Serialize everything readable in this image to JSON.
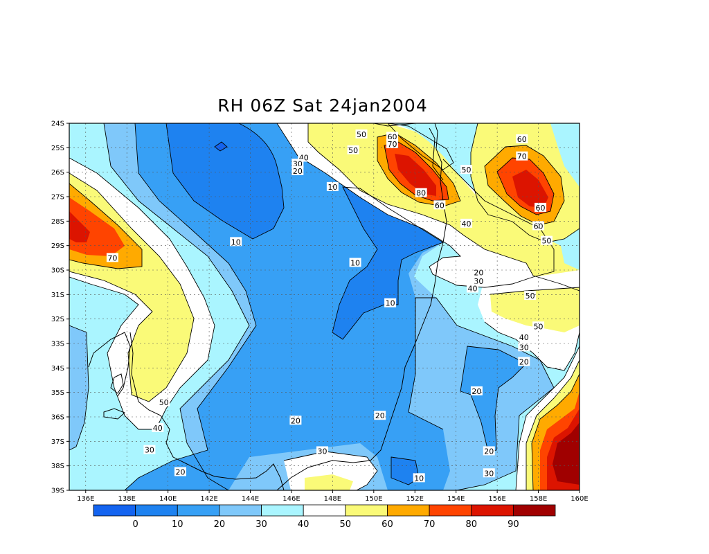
{
  "chart_data": {
    "type": "heatmap",
    "title": "RH 06Z Sat 24jan2004",
    "xlabel": "",
    "ylabel": "",
    "x_tick_labels": [
      "136E",
      "138E",
      "140E",
      "142E",
      "144E",
      "146E",
      "148E",
      "150E",
      "152E",
      "154E",
      "156E",
      "158E",
      "160E"
    ],
    "x_tick_values": [
      136,
      138,
      140,
      142,
      144,
      146,
      148,
      150,
      152,
      154,
      156,
      158,
      160
    ],
    "y_tick_labels": [
      "24S",
      "25S",
      "26S",
      "27S",
      "28S",
      "29S",
      "30S",
      "31S",
      "32S",
      "33S",
      "34S",
      "35S",
      "36S",
      "37S",
      "38S",
      "39S"
    ],
    "y_tick_values": [
      -24,
      -25,
      -26,
      -27,
      -28,
      -29,
      -30,
      -31,
      -32,
      -33,
      -34,
      -35,
      -36,
      -37,
      -38,
      -39
    ],
    "xlim": [
      135.2,
      160
    ],
    "ylim": [
      -39,
      -24
    ],
    "grid": true,
    "colorbar": {
      "labels": [
        "0",
        "10",
        "20",
        "30",
        "40",
        "50",
        "60",
        "70",
        "80",
        "90"
      ],
      "bins": [
        {
          "color": "#1464f0"
        },
        {
          "color": "#1e82f0"
        },
        {
          "color": "#37a0f5"
        },
        {
          "color": "#7fc8fa"
        },
        {
          "color": "#aaf5ff"
        },
        {
          "color": "#ffffff"
        },
        {
          "color": "#fafa78"
        },
        {
          "color": "#ffaa00"
        },
        {
          "color": "#ff4400"
        },
        {
          "color": "#dc1400"
        },
        {
          "color": "#a00000"
        }
      ]
    },
    "contour_labels": [
      {
        "text": "50",
        "lon": 149.4,
        "lat": -24.45
      },
      {
        "text": "50",
        "lon": 149.0,
        "lat": -25.1
      },
      {
        "text": "40",
        "lon": 146.6,
        "lat": -25.4
      },
      {
        "text": "30",
        "lon": 146.3,
        "lat": -25.65
      },
      {
        "text": "20",
        "lon": 146.3,
        "lat": -25.95
      },
      {
        "text": "60",
        "lon": 150.9,
        "lat": -24.55
      },
      {
        "text": "70",
        "lon": 150.9,
        "lat": -24.85
      },
      {
        "text": "50",
        "lon": 154.5,
        "lat": -25.9
      },
      {
        "text": "10",
        "lon": 148.0,
        "lat": -26.6
      },
      {
        "text": "80",
        "lon": 152.3,
        "lat": -26.85
      },
      {
        "text": "60",
        "lon": 153.2,
        "lat": -27.35
      },
      {
        "text": "60",
        "lon": 157.2,
        "lat": -24.65
      },
      {
        "text": "70",
        "lon": 157.2,
        "lat": -25.35
      },
      {
        "text": "60",
        "lon": 158.1,
        "lat": -27.45
      },
      {
        "text": "40",
        "lon": 154.5,
        "lat": -28.1
      },
      {
        "text": "60",
        "lon": 158.0,
        "lat": -28.2
      },
      {
        "text": "50",
        "lon": 158.4,
        "lat": -28.8
      },
      {
        "text": "10",
        "lon": 143.3,
        "lat": -28.85
      },
      {
        "text": "70",
        "lon": 137.3,
        "lat": -29.5
      },
      {
        "text": "10",
        "lon": 149.1,
        "lat": -29.7
      },
      {
        "text": "20",
        "lon": 155.1,
        "lat": -30.1
      },
      {
        "text": "30",
        "lon": 155.1,
        "lat": -30.45
      },
      {
        "text": "40",
        "lon": 154.8,
        "lat": -30.75
      },
      {
        "text": "50",
        "lon": 157.6,
        "lat": -31.05
      },
      {
        "text": "10",
        "lon": 150.8,
        "lat": -31.35
      },
      {
        "text": "50",
        "lon": 158.0,
        "lat": -32.3
      },
      {
        "text": "40",
        "lon": 157.3,
        "lat": -32.75
      },
      {
        "text": "30",
        "lon": 157.3,
        "lat": -33.15
      },
      {
        "text": "20",
        "lon": 157.3,
        "lat": -33.75
      },
      {
        "text": "50",
        "lon": 139.8,
        "lat": -35.4
      },
      {
        "text": "20",
        "lon": 155.0,
        "lat": -34.95
      },
      {
        "text": "20",
        "lon": 146.2,
        "lat": -36.15
      },
      {
        "text": "20",
        "lon": 150.3,
        "lat": -35.95
      },
      {
        "text": "40",
        "lon": 139.5,
        "lat": -36.45
      },
      {
        "text": "30",
        "lon": 139.1,
        "lat": -37.35
      },
      {
        "text": "30",
        "lon": 147.5,
        "lat": -37.4
      },
      {
        "text": "20",
        "lon": 155.6,
        "lat": -37.4
      },
      {
        "text": "20",
        "lon": 140.6,
        "lat": -38.25
      },
      {
        "text": "10",
        "lon": 152.2,
        "lat": -38.5
      },
      {
        "text": "30",
        "lon": 155.6,
        "lat": -38.3
      }
    ]
  }
}
